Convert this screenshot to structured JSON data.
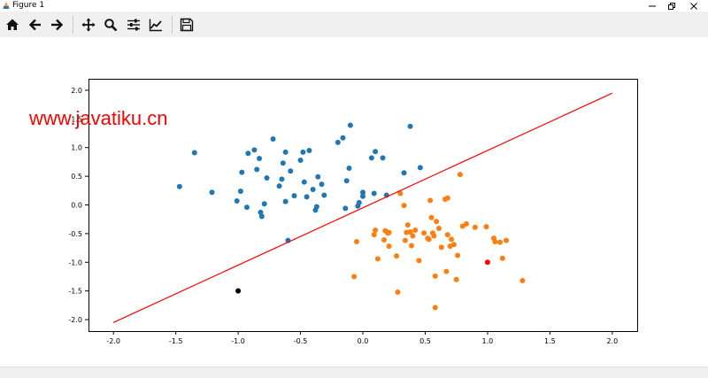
{
  "window": {
    "title": "Figure 1",
    "minimize_icon": "minimize-icon",
    "maximize_icon": "restore-icon",
    "close_icon": "close-icon"
  },
  "toolbar": {
    "buttons": [
      {
        "name": "home-button",
        "icon": "home-icon"
      },
      {
        "name": "back-button",
        "icon": "arrow-left-icon"
      },
      {
        "name": "forward-button",
        "icon": "arrow-right-icon"
      },
      {
        "name": "pan-button",
        "icon": "move-icon"
      },
      {
        "name": "zoom-button",
        "icon": "magnifier-icon"
      },
      {
        "name": "configure-subplots-button",
        "icon": "sliders-icon"
      },
      {
        "name": "edit-axis-button",
        "icon": "line-chart-icon"
      },
      {
        "name": "save-button",
        "icon": "floppy-disk-icon"
      }
    ]
  },
  "watermark": "www.javatiku.cn",
  "colors": {
    "class0": "#1f77b4",
    "class1": "#ff7f0e",
    "line": "#ff0000",
    "point_black": "#000000",
    "point_red": "#ff0000",
    "watermark": "#ff0000"
  },
  "chart_data": {
    "type": "scatter",
    "xlim": [
      -2.2,
      2.2
    ],
    "ylim": [
      -2.2,
      2.2
    ],
    "x_ticks": [
      "-2.0",
      "-1.5",
      "-1.0",
      "-0.5",
      "0.0",
      "0.5",
      "1.0",
      "1.5",
      "2.0"
    ],
    "y_ticks": [
      "2.0",
      "1.5",
      "1.0",
      "0.5",
      "0.0",
      "-0.5",
      "-1.0",
      "-1.5",
      "-2.0"
    ],
    "series": [
      {
        "color": "#1f77b4",
        "points": [
          [
            -1.47,
            0.32
          ],
          [
            -1.35,
            0.91
          ],
          [
            -1.21,
            0.22
          ],
          [
            -1.01,
            0.07
          ],
          [
            -0.98,
            0.24
          ],
          [
            -0.97,
            0.57
          ],
          [
            -0.93,
            -0.04
          ],
          [
            -0.92,
            0.9
          ],
          [
            -0.87,
            0.96
          ],
          [
            -0.85,
            0.62
          ],
          [
            -0.83,
            0.81
          ],
          [
            -0.82,
            -0.13
          ],
          [
            -0.81,
            -0.2
          ],
          [
            -0.79,
            0.02
          ],
          [
            -0.77,
            0.47
          ],
          [
            -0.72,
            1.15
          ],
          [
            -0.67,
            0.33
          ],
          [
            -0.65,
            0.45
          ],
          [
            -0.64,
            0.73
          ],
          [
            -0.62,
            0.06
          ],
          [
            -0.62,
            0.92
          ],
          [
            -0.6,
            -0.62
          ],
          [
            -0.58,
            0.59
          ],
          [
            -0.55,
            0.16
          ],
          [
            -0.5,
            0.78
          ],
          [
            -0.48,
            0.92
          ],
          [
            -0.47,
            0.4
          ],
          [
            -0.45,
            0.14
          ],
          [
            -0.43,
            0.95
          ],
          [
            -0.4,
            0.27
          ],
          [
            -0.38,
            -0.09
          ],
          [
            -0.37,
            -0.03
          ],
          [
            -0.36,
            0.49
          ],
          [
            -0.33,
            0.36
          ],
          [
            -0.31,
            0.17
          ],
          [
            -0.2,
            1.09
          ],
          [
            -0.16,
            1.17
          ],
          [
            -0.14,
            -0.06
          ],
          [
            -0.13,
            0.42
          ],
          [
            -0.11,
            0.64
          ],
          [
            -0.1,
            1.39
          ],
          [
            -0.04,
            -0.02
          ],
          [
            -0.03,
            0.04
          ],
          [
            0.0,
            0.22
          ],
          [
            0.0,
            0.15
          ],
          [
            0.07,
            0.82
          ],
          [
            0.09,
            0.2
          ],
          [
            0.1,
            0.93
          ],
          [
            0.16,
            0.82
          ],
          [
            0.19,
            0.17
          ],
          [
            0.33,
            0.56
          ],
          [
            0.38,
            1.37
          ],
          [
            0.46,
            0.65
          ]
        ]
      },
      {
        "color": "#ff7f0e",
        "points": [
          [
            -0.07,
            -1.25
          ],
          [
            -0.05,
            -0.64
          ],
          [
            0.09,
            -0.52
          ],
          [
            0.1,
            -0.44
          ],
          [
            0.12,
            -0.94
          ],
          [
            0.17,
            -0.61
          ],
          [
            0.18,
            -0.45
          ],
          [
            0.2,
            -0.49
          ],
          [
            0.21,
            -0.72
          ],
          [
            0.21,
            -0.48
          ],
          [
            0.27,
            -0.89
          ],
          [
            0.28,
            -1.52
          ],
          [
            0.3,
            0.2
          ],
          [
            0.33,
            -0.01
          ],
          [
            0.34,
            -0.62
          ],
          [
            0.35,
            -0.48
          ],
          [
            0.36,
            -0.35
          ],
          [
            0.38,
            -0.47
          ],
          [
            0.39,
            -0.71
          ],
          [
            0.4,
            -0.54
          ],
          [
            0.42,
            -0.44
          ],
          [
            0.45,
            -0.97
          ],
          [
            0.49,
            -0.49
          ],
          [
            0.52,
            -0.58
          ],
          [
            0.53,
            -0.6
          ],
          [
            0.54,
            0.08
          ],
          [
            0.55,
            -0.22
          ],
          [
            0.56,
            -0.49
          ],
          [
            0.57,
            -0.54
          ],
          [
            0.58,
            -1.24
          ],
          [
            0.58,
            -1.79
          ],
          [
            0.59,
            -0.29
          ],
          [
            0.61,
            -0.41
          ],
          [
            0.63,
            -0.74
          ],
          [
            0.66,
            0.1
          ],
          [
            0.67,
            -1.16
          ],
          [
            0.68,
            0.12
          ],
          [
            0.68,
            -0.52
          ],
          [
            0.7,
            -0.72
          ],
          [
            0.71,
            -0.6
          ],
          [
            0.73,
            -0.69
          ],
          [
            0.75,
            -1.3
          ],
          [
            0.76,
            -0.88
          ],
          [
            0.78,
            0.53
          ],
          [
            0.8,
            -0.37
          ],
          [
            0.83,
            -0.33
          ],
          [
            0.9,
            -0.39
          ],
          [
            0.99,
            -0.38
          ],
          [
            1.05,
            -0.58
          ],
          [
            1.06,
            -0.64
          ],
          [
            1.12,
            -0.93
          ],
          [
            1.15,
            -0.62
          ],
          [
            1.1,
            -0.65
          ],
          [
            1.28,
            -1.32
          ]
        ]
      }
    ],
    "decision_line": {
      "x": [
        -2.0,
        2.0
      ],
      "y": [
        -2.05,
        1.95
      ],
      "color": "#ff0000"
    },
    "highlight_points": [
      {
        "x": -1.0,
        "y": -1.5,
        "color": "#000000"
      },
      {
        "x": 1.0,
        "y": -1.0,
        "color": "#ff0000"
      }
    ]
  }
}
